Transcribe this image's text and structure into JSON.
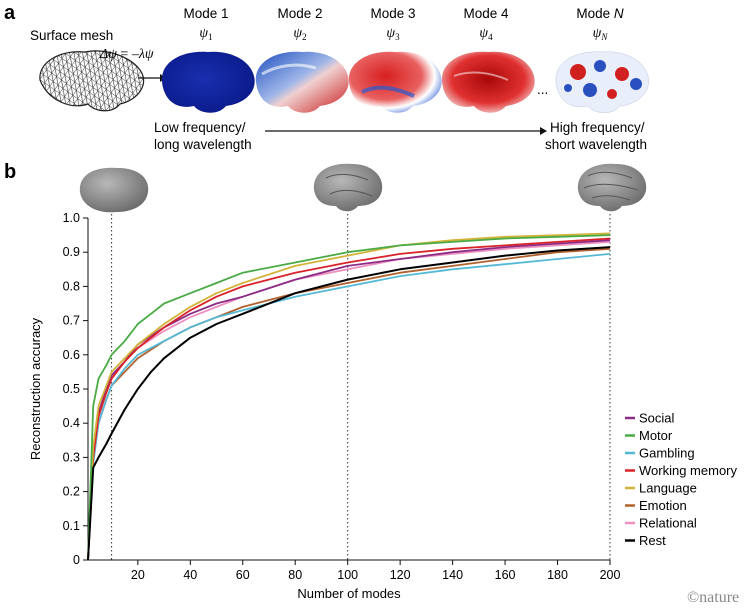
{
  "panel_a": {
    "letter": "a",
    "surface_label": "Surface mesh",
    "equation": {
      "lhs": "Δψ",
      "eq": " = ",
      "rhs": "–λψ"
    },
    "modes": [
      {
        "title": "Mode 1",
        "psi": "ψ",
        "sub": "1"
      },
      {
        "title": "Mode 2",
        "psi": "ψ",
        "sub": "2"
      },
      {
        "title": "Mode 3",
        "psi": "ψ",
        "sub": "3"
      },
      {
        "title": "Mode 4",
        "psi": "ψ",
        "sub": "4"
      },
      {
        "title": "Mode ",
        "title_italic": "N",
        "psi": "ψ",
        "sub": "N"
      }
    ],
    "ellipsis": "...",
    "low_freq": [
      "Low frequency/",
      "long wavelength"
    ],
    "high_freq": [
      "High frequency/",
      "short wavelength"
    ]
  },
  "panel_b": {
    "letter": "b"
  },
  "watermark": "©nature",
  "colors": {
    "Social": "#8b2c86",
    "Motor": "#4aab45",
    "Gambling": "#55b9d6",
    "Working memory": "#d8232a",
    "Language": "#d4b33a",
    "Emotion": "#b0622c",
    "Relational": "#ee8fc0",
    "Rest": "#000000"
  },
  "chart_data": {
    "type": "line",
    "xlabel": "Number of modes",
    "ylabel": "Reconstruction accuracy",
    "xlim": [
      1,
      200
    ],
    "ylim": [
      0,
      1.0
    ],
    "xticks": [
      20,
      40,
      60,
      80,
      100,
      120,
      140,
      160,
      180,
      200
    ],
    "yticks": [
      0,
      0.1,
      0.2,
      0.3,
      0.4,
      0.5,
      0.6,
      0.7,
      0.8,
      0.9,
      1.0
    ],
    "ytick_labels": [
      "0",
      "0.1",
      "0.2",
      "0.3",
      "0.4",
      "0.5",
      "0.6",
      "0.7",
      "0.8",
      "0.9",
      "1.0"
    ],
    "reference_lines_x": [
      10,
      100,
      200
    ],
    "legend_position": "right",
    "grid": false,
    "series": [
      {
        "name": "Social",
        "x": [
          1,
          3,
          5,
          8,
          10,
          15,
          20,
          30,
          40,
          50,
          60,
          80,
          100,
          120,
          140,
          160,
          180,
          200
        ],
        "y": [
          0.0,
          0.3,
          0.43,
          0.5,
          0.54,
          0.58,
          0.63,
          0.68,
          0.72,
          0.75,
          0.77,
          0.82,
          0.86,
          0.88,
          0.9,
          0.915,
          0.925,
          0.935
        ]
      },
      {
        "name": "Motor",
        "x": [
          1,
          3,
          5,
          8,
          10,
          15,
          20,
          25,
          30,
          40,
          50,
          60,
          80,
          100,
          120,
          140,
          160,
          180,
          200
        ],
        "y": [
          0.0,
          0.45,
          0.53,
          0.57,
          0.6,
          0.64,
          0.69,
          0.72,
          0.75,
          0.78,
          0.81,
          0.84,
          0.87,
          0.9,
          0.92,
          0.93,
          0.94,
          0.945,
          0.95
        ]
      },
      {
        "name": "Gambling",
        "x": [
          1,
          3,
          5,
          8,
          10,
          15,
          20,
          30,
          40,
          50,
          60,
          80,
          100,
          120,
          140,
          160,
          180,
          200
        ],
        "y": [
          0.0,
          0.28,
          0.4,
          0.47,
          0.51,
          0.56,
          0.6,
          0.64,
          0.68,
          0.71,
          0.73,
          0.77,
          0.8,
          0.83,
          0.85,
          0.865,
          0.88,
          0.895
        ]
      },
      {
        "name": "Working memory",
        "x": [
          1,
          3,
          5,
          8,
          10,
          15,
          20,
          30,
          40,
          50,
          60,
          80,
          100,
          120,
          140,
          160,
          180,
          200
        ],
        "y": [
          0.0,
          0.3,
          0.42,
          0.49,
          0.53,
          0.58,
          0.62,
          0.68,
          0.73,
          0.77,
          0.8,
          0.84,
          0.87,
          0.895,
          0.91,
          0.92,
          0.93,
          0.94
        ]
      },
      {
        "name": "Language",
        "x": [
          1,
          3,
          5,
          8,
          10,
          15,
          20,
          30,
          40,
          50,
          60,
          80,
          100,
          120,
          140,
          160,
          180,
          200
        ],
        "y": [
          0.0,
          0.33,
          0.45,
          0.51,
          0.55,
          0.59,
          0.63,
          0.69,
          0.74,
          0.78,
          0.81,
          0.86,
          0.89,
          0.92,
          0.935,
          0.945,
          0.95,
          0.955
        ]
      },
      {
        "name": "Emotion",
        "x": [
          1,
          3,
          5,
          8,
          10,
          15,
          20,
          30,
          40,
          50,
          60,
          80,
          100,
          120,
          140,
          160,
          180,
          200
        ],
        "y": [
          0.0,
          0.29,
          0.4,
          0.47,
          0.51,
          0.55,
          0.59,
          0.64,
          0.68,
          0.71,
          0.74,
          0.78,
          0.81,
          0.84,
          0.86,
          0.88,
          0.9,
          0.91
        ]
      },
      {
        "name": "Relational",
        "x": [
          1,
          3,
          5,
          8,
          10,
          15,
          20,
          30,
          40,
          50,
          60,
          80,
          100,
          120,
          140,
          160,
          180,
          200
        ],
        "y": [
          0.0,
          0.3,
          0.42,
          0.49,
          0.53,
          0.58,
          0.62,
          0.67,
          0.71,
          0.74,
          0.77,
          0.82,
          0.85,
          0.88,
          0.895,
          0.91,
          0.92,
          0.93
        ]
      },
      {
        "name": "Rest",
        "x": [
          1,
          3,
          5,
          8,
          10,
          15,
          20,
          25,
          30,
          40,
          50,
          60,
          80,
          100,
          120,
          140,
          160,
          180,
          200
        ],
        "y": [
          0.0,
          0.27,
          0.3,
          0.34,
          0.37,
          0.44,
          0.5,
          0.55,
          0.59,
          0.65,
          0.69,
          0.72,
          0.78,
          0.82,
          0.85,
          0.87,
          0.89,
          0.905,
          0.915
        ]
      }
    ]
  }
}
